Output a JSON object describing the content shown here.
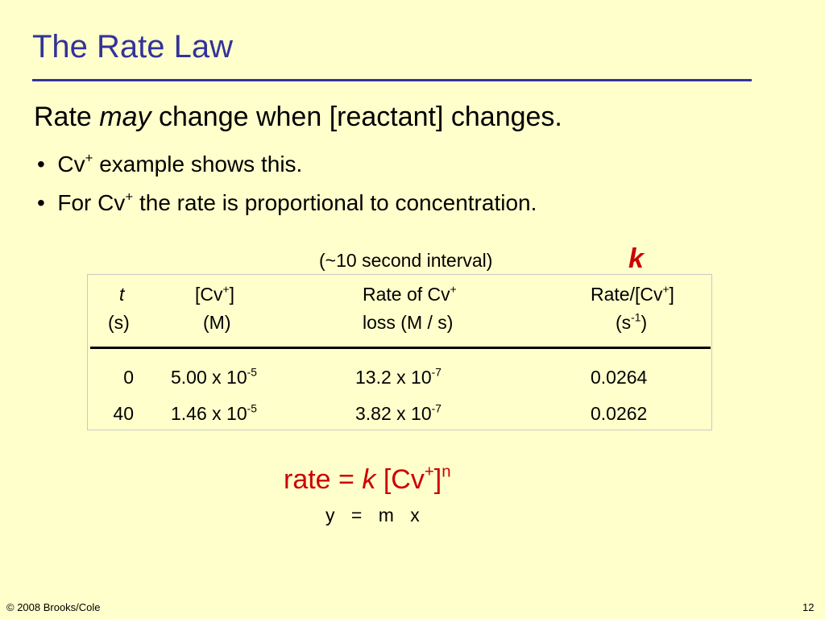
{
  "header": {
    "title": "The Rate Law"
  },
  "subtitle": {
    "before": "Rate",
    "emphasis": "may",
    "after": "change when [reactant] changes."
  },
  "bullets": [
    {
      "before": "Cv",
      "sup": "+",
      "after": "example shows this."
    },
    {
      "before": "For Cv",
      "sup": "+",
      "after": "the rate is proportional to concentration."
    }
  ],
  "interval_note": "(~10 second interval)",
  "k_label": "k",
  "table": {
    "headers": [
      {
        "line1": {
          "before": "t"
        },
        "line2": {
          "before": "(s)"
        }
      },
      {
        "line1": {
          "before": "[Cv",
          "sup": "+",
          "after": "]"
        },
        "line2": {
          "before": "(M)"
        }
      },
      {
        "line1": {
          "before": "Rate of Cv",
          "sup": "+"
        },
        "line2": {
          "before": "loss (M / s)"
        }
      },
      {
        "line1": {
          "before": "Rate/[Cv",
          "sup": "+",
          "after": "]"
        },
        "line2": {
          "before": "(s",
          "sup": "-1",
          "after": ")"
        }
      }
    ],
    "rows": [
      [
        0,
        {
          "mantissa": "5.00 x 10",
          "exponent": "-5"
        },
        {
          "mantissa": "13.2 x 10",
          "exponent": "-7"
        },
        0.0264
      ],
      [
        40,
        {
          "mantissa": "1.46 x 10",
          "exponent": "-5"
        },
        {
          "mantissa": "3.82 x 10",
          "exponent": "-7"
        },
        0.0262
      ]
    ]
  },
  "equation": {
    "lhs": "rate",
    "equals": "=",
    "k": "k",
    "bracket_open": "[Cv",
    "charge": "+",
    "bracket_close": "]",
    "order": "n"
  },
  "analogy": {
    "y": "y",
    "equals": "=",
    "m": "m",
    "x": "x"
  },
  "footer": {
    "copyright": "© 2008 Brooks/Cole",
    "page": "12"
  }
}
